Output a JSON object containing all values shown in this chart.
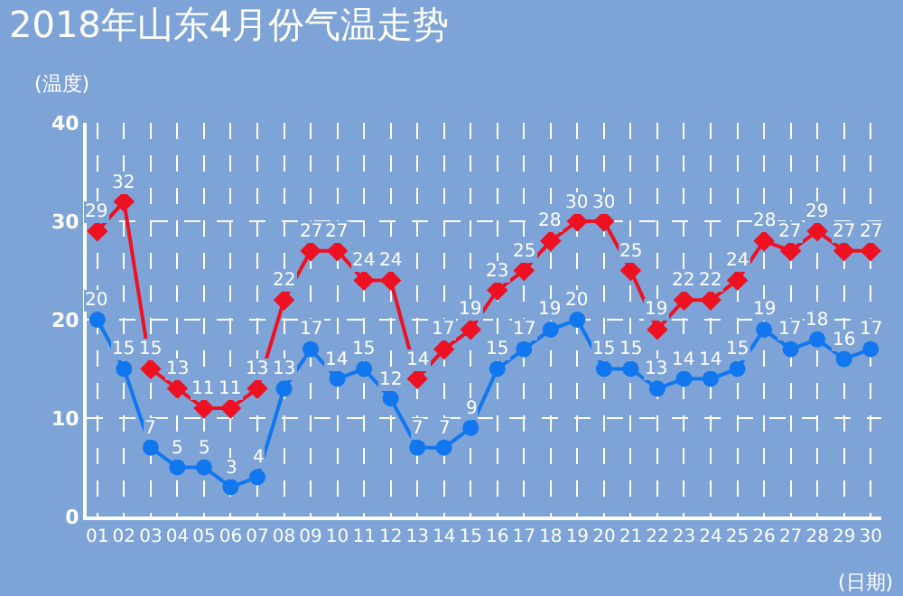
{
  "chart_data": {
    "type": "line",
    "title": "2018年山东4月份气温走势",
    "xlabel": "(日期)",
    "ylabel": "(温度)",
    "categories": [
      "01",
      "02",
      "03",
      "04",
      "05",
      "06",
      "07",
      "08",
      "09",
      "10",
      "11",
      "12",
      "13",
      "14",
      "15",
      "16",
      "17",
      "18",
      "19",
      "20",
      "21",
      "22",
      "23",
      "24",
      "25",
      "26",
      "27",
      "28",
      "29",
      "30"
    ],
    "series": [
      {
        "color": "#ee1122",
        "marker": "diamond",
        "values": [
          29,
          32,
          15,
          13,
          11,
          11,
          13,
          22,
          27,
          27,
          24,
          24,
          14,
          17,
          19,
          23,
          25,
          28,
          30,
          30,
          25,
          19,
          22,
          22,
          24,
          28,
          27,
          29,
          27,
          27
        ]
      },
      {
        "color": "#1177ee",
        "marker": "circle",
        "values": [
          20,
          15,
          7,
          5,
          5,
          3,
          4,
          13,
          17,
          14,
          15,
          12,
          7,
          7,
          9,
          15,
          17,
          19,
          20,
          15,
          15,
          13,
          14,
          14,
          15,
          19,
          17,
          18,
          16,
          17
        ]
      }
    ],
    "ylim": [
      0,
      40
    ],
    "yticks": [
      0,
      10,
      20,
      30,
      40
    ],
    "grid": true,
    "line_style": "solid",
    "data_labels": true
  }
}
